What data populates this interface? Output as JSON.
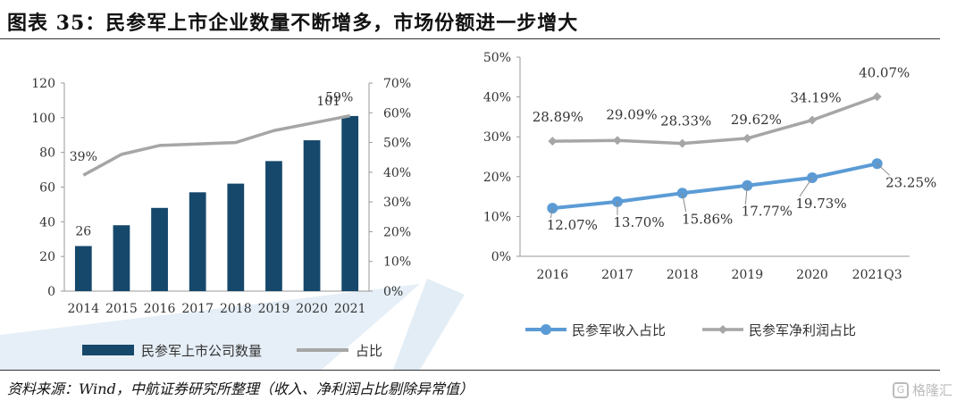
{
  "header": {
    "title": "图表 35：民参军上市企业数量不断增多，市场份额进一步增大"
  },
  "footer": {
    "source": "资料来源：Wind，中航证券研究所整理（收入、净利润占比剔除异常值）",
    "watermark": "格隆汇"
  },
  "colors": {
    "bar": "#16486b",
    "gray_line": "#a6a6a6",
    "blue_line": "#5b9bd5",
    "watermark_band": "#dbe8f3"
  },
  "chart_data": [
    {
      "type": "bar",
      "categories": [
        "2014",
        "2015",
        "2016",
        "2017",
        "2018",
        "2019",
        "2020",
        "2021"
      ],
      "series": [
        {
          "name": "民参军上市公司数量",
          "values": [
            26,
            38,
            48,
            57,
            62,
            75,
            87,
            101
          ],
          "axis": "left"
        },
        {
          "name": "占比",
          "values": [
            39,
            46,
            49,
            49.5,
            50,
            54,
            56.5,
            59
          ],
          "axis": "right",
          "render": "line"
        }
      ],
      "data_labels": [
        {
          "series": 0,
          "index": 0,
          "text": "26"
        },
        {
          "series": 0,
          "index": 7,
          "text": "101"
        },
        {
          "series": 1,
          "index": 0,
          "text": "39%"
        },
        {
          "series": 1,
          "index": 7,
          "text": "59%"
        }
      ],
      "ylim": [
        0,
        120
      ],
      "yticks": [
        "0",
        "20",
        "40",
        "60",
        "80",
        "100",
        "120"
      ],
      "ylim_right": [
        0,
        70
      ],
      "yticks_right": [
        "0%",
        "10%",
        "20%",
        "30%",
        "40%",
        "50%",
        "60%",
        "70%"
      ],
      "legend": "bottom",
      "legend_labels": [
        "民参军上市公司数量",
        "占比"
      ]
    },
    {
      "type": "line",
      "categories": [
        "2016",
        "2017",
        "2018",
        "2019",
        "2020",
        "2021Q3"
      ],
      "series": [
        {
          "name": "民参军收入占比",
          "values": [
            12.07,
            13.7,
            15.86,
            17.77,
            19.73,
            23.25
          ],
          "labels": [
            "12.07%",
            "13.70%",
            "15.86%",
            "17.77%",
            "19.73%",
            "23.25%"
          ]
        },
        {
          "name": "民参军净利润占比",
          "values": [
            28.89,
            29.09,
            28.33,
            29.62,
            34.19,
            40.07
          ],
          "labels": [
            "28.89%",
            "29.09%",
            "28.33%",
            "29.62%",
            "34.19%",
            "40.07%"
          ]
        }
      ],
      "ylim": [
        0,
        50
      ],
      "yticks": [
        "0%",
        "10%",
        "20%",
        "30%",
        "40%",
        "50%"
      ],
      "legend": "bottom",
      "grid": false
    }
  ]
}
